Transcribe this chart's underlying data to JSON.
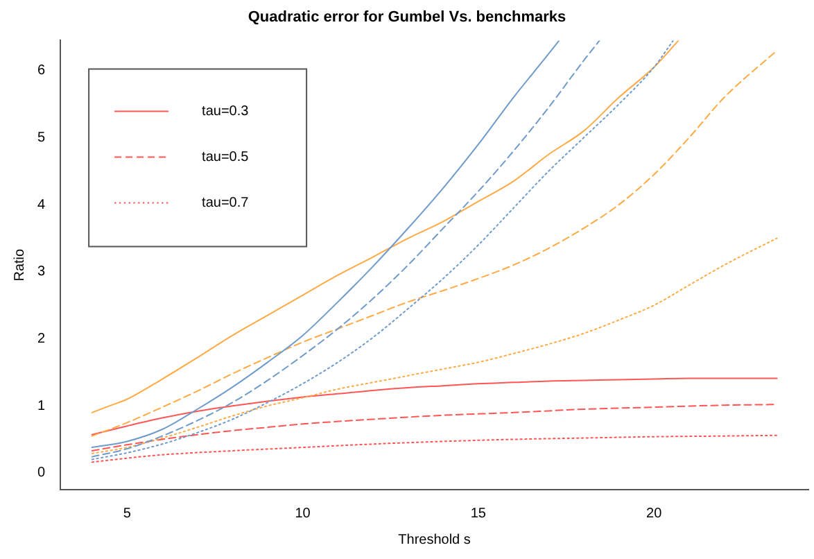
{
  "chart_data": {
    "type": "line",
    "title": "Quadratic error for Gumbel Vs. benchmarks",
    "xlabel": "Threshold s",
    "ylabel": "Ratio",
    "xlim": [
      3.1,
      24.4
    ],
    "xticks": [
      5,
      10,
      15,
      20
    ],
    "ylim": [
      -0.25,
      6.45
    ],
    "yticks": [
      0,
      1,
      2,
      3,
      4,
      5,
      6
    ],
    "grid": false,
    "legend": "top left",
    "marker": "none",
    "series": [
      {
        "color": "#6f9bcb",
        "line_style": "solid",
        "x": [
          4,
          5,
          6,
          7,
          8,
          9,
          10,
          11,
          12,
          13,
          14,
          15,
          16,
          17,
          17.3
        ],
        "values": [
          0.38,
          0.47,
          0.65,
          0.95,
          1.28,
          1.65,
          2.05,
          2.55,
          3.08,
          3.65,
          4.25,
          4.9,
          5.6,
          6.25,
          6.45
        ]
      },
      {
        "color": "#6f9bcb",
        "line_style": "dashed",
        "x": [
          4,
          5,
          6,
          7,
          8,
          9,
          10,
          11,
          12,
          13,
          14,
          15,
          16,
          17,
          18,
          18.45
        ],
        "values": [
          0.24,
          0.36,
          0.55,
          0.78,
          1.05,
          1.38,
          1.75,
          2.15,
          2.6,
          3.1,
          3.65,
          4.2,
          4.8,
          5.45,
          6.15,
          6.45
        ]
      },
      {
        "color": "#6f9bcb",
        "line_style": "dotted",
        "x": [
          4,
          5,
          6,
          7,
          8,
          9,
          10,
          11,
          12,
          13,
          14,
          15,
          16,
          17,
          18,
          19,
          20,
          20.55
        ],
        "values": [
          0.2,
          0.3,
          0.43,
          0.6,
          0.8,
          1.05,
          1.33,
          1.65,
          2.02,
          2.45,
          2.9,
          3.4,
          3.95,
          4.5,
          5.0,
          5.5,
          6.05,
          6.45
        ]
      },
      {
        "color": "#ffaa44",
        "line_style": "solid",
        "x": [
          4,
          4.5,
          5,
          6,
          7,
          8,
          9,
          10,
          11,
          12,
          13,
          14,
          15,
          16,
          17,
          18,
          19,
          20,
          20.7
        ],
        "values": [
          0.9,
          1.0,
          1.1,
          1.4,
          1.72,
          2.05,
          2.35,
          2.65,
          2.95,
          3.22,
          3.5,
          3.75,
          4.05,
          4.35,
          4.75,
          5.1,
          5.6,
          6.05,
          6.45
        ]
      },
      {
        "color": "#ffaa44",
        "line_style": "dashed",
        "x": [
          4,
          5,
          6,
          7,
          8,
          9,
          10,
          11,
          12,
          13,
          14,
          15,
          16,
          17,
          18,
          19,
          20,
          21,
          22,
          23.5
        ],
        "values": [
          0.55,
          0.75,
          0.98,
          1.22,
          1.48,
          1.72,
          1.95,
          2.15,
          2.35,
          2.55,
          2.72,
          2.9,
          3.1,
          3.35,
          3.65,
          4.0,
          4.45,
          5.0,
          5.6,
          6.3
        ]
      },
      {
        "color": "#ffaa44",
        "line_style": "dotted",
        "x": [
          4,
          5,
          6,
          7,
          8,
          9,
          10,
          11,
          12,
          13,
          14,
          15,
          16,
          17,
          18,
          19,
          20,
          21,
          22,
          23.5
        ],
        "values": [
          0.29,
          0.38,
          0.52,
          0.68,
          0.85,
          1.0,
          1.12,
          1.25,
          1.35,
          1.45,
          1.55,
          1.65,
          1.78,
          1.92,
          2.08,
          2.28,
          2.5,
          2.8,
          3.1,
          3.5
        ]
      },
      {
        "name": "tau=0.3",
        "color": "#ff5555",
        "line_style": "solid",
        "x": [
          4,
          5,
          6,
          7,
          8,
          9,
          10,
          11,
          12,
          13,
          14,
          15,
          16,
          17,
          18,
          19,
          20,
          21,
          22,
          23.5
        ],
        "values": [
          0.57,
          0.7,
          0.82,
          0.92,
          1.0,
          1.07,
          1.13,
          1.18,
          1.23,
          1.27,
          1.3,
          1.33,
          1.35,
          1.37,
          1.38,
          1.39,
          1.4,
          1.41,
          1.41,
          1.41
        ]
      },
      {
        "name": "tau=0.5",
        "color": "#ff5555",
        "line_style": "dashed",
        "x": [
          4,
          5,
          6,
          7,
          8,
          9,
          10,
          12,
          14,
          16,
          18,
          20,
          22,
          23.5
        ],
        "values": [
          0.33,
          0.42,
          0.5,
          0.57,
          0.63,
          0.68,
          0.73,
          0.8,
          0.86,
          0.9,
          0.95,
          0.98,
          1.01,
          1.02
        ]
      },
      {
        "name": "tau=0.7",
        "color": "#ff5555",
        "line_style": "dotted",
        "x": [
          4,
          5,
          6,
          8,
          10,
          12,
          14,
          16,
          18,
          20,
          22,
          23.5
        ],
        "values": [
          0.16,
          0.22,
          0.27,
          0.33,
          0.38,
          0.43,
          0.47,
          0.5,
          0.52,
          0.54,
          0.55,
          0.56
        ]
      }
    ]
  }
}
